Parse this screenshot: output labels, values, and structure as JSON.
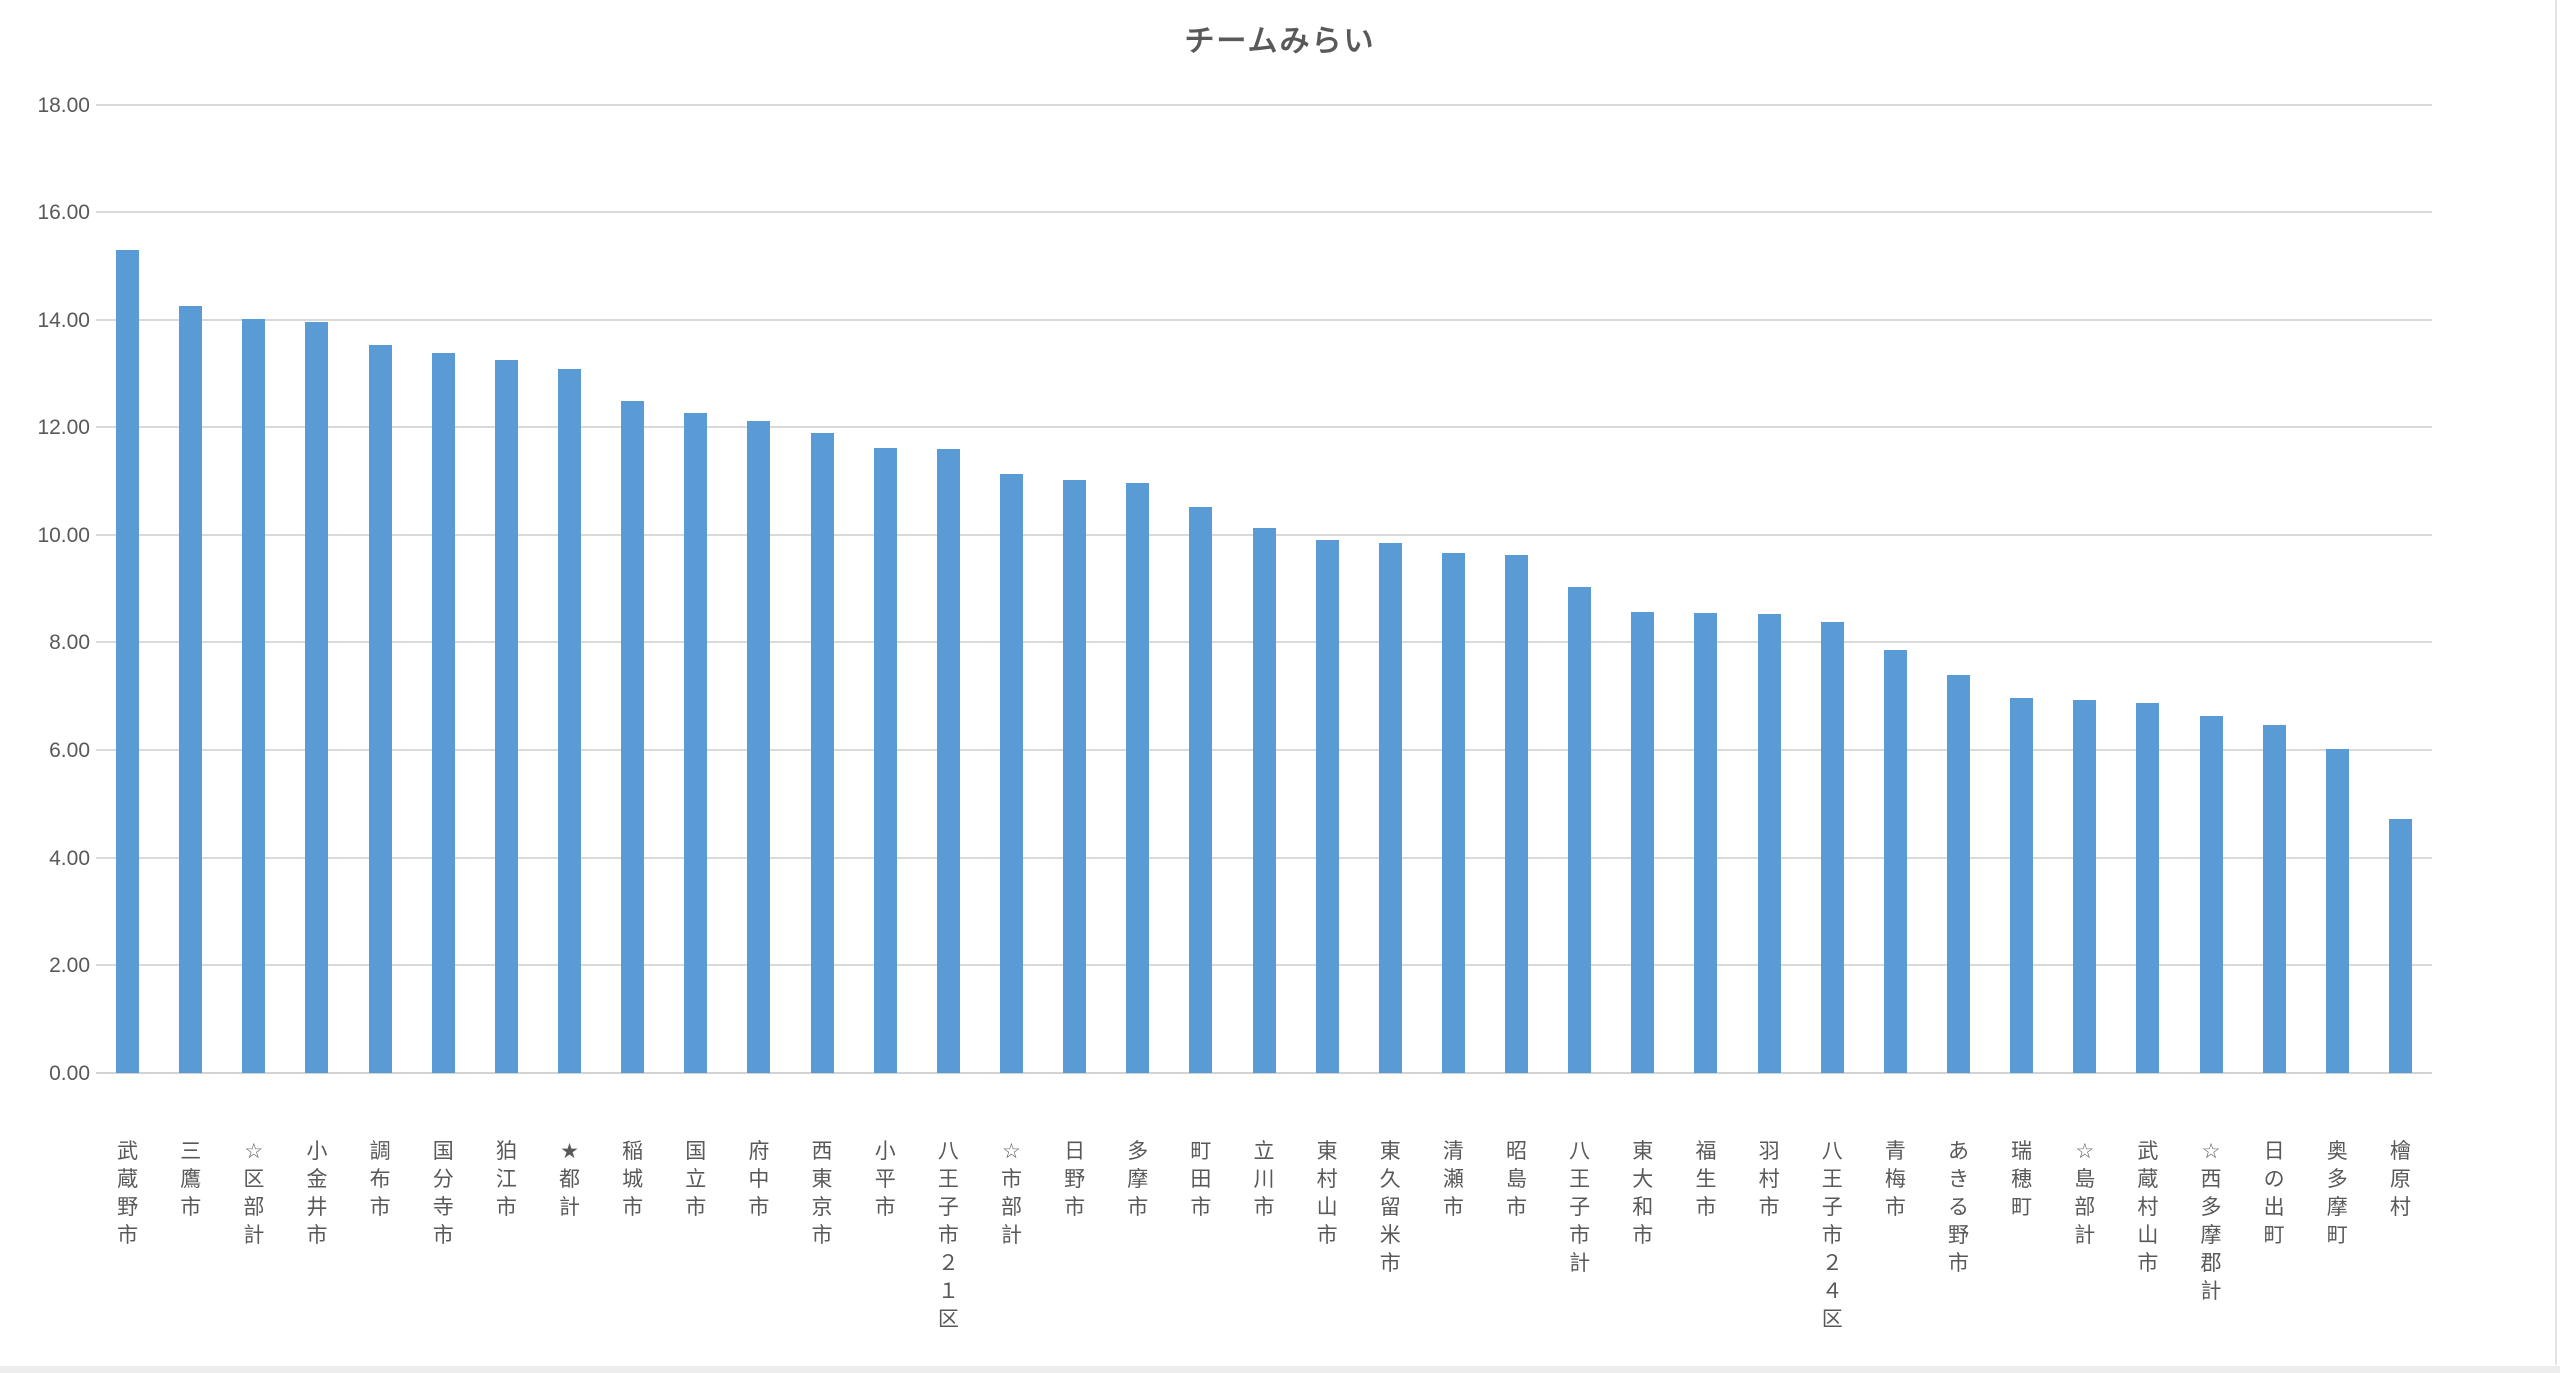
{
  "chart_data": {
    "type": "bar",
    "title": "チームみらい",
    "categories": [
      "武蔵野市",
      "三鷹市",
      "☆区部計",
      "小金井市",
      "調布市",
      "国分寺市",
      "狛江市",
      "★都計",
      "稲城市",
      "国立市",
      "府中市",
      "西東京市",
      "小平市",
      "八王子市２１区",
      "☆市部計",
      "日野市",
      "多摩市",
      "町田市",
      "立川市",
      "東村山市",
      "東久留米市",
      "清瀬市",
      "昭島市",
      "八王子市計",
      "東大和市",
      "福生市",
      "羽村市",
      "八王子市２４区",
      "青梅市",
      "あきる野市",
      "瑞穂町",
      "☆島部計",
      "武蔵村山市",
      "☆西多摩郡計",
      "日の出町",
      "奥多摩町",
      "檜原村"
    ],
    "values": [
      15.29,
      14.26,
      14.01,
      13.96,
      13.53,
      13.38,
      13.25,
      13.08,
      12.49,
      12.26,
      12.11,
      11.9,
      11.62,
      11.6,
      11.13,
      11.01,
      10.96,
      10.51,
      10.12,
      9.9,
      9.84,
      9.66,
      9.62,
      9.03,
      8.57,
      8.55,
      8.53,
      8.38,
      7.86,
      7.39,
      6.96,
      6.93,
      6.87,
      6.63,
      6.47,
      6.01,
      4.71
    ],
    "xlabel": "",
    "ylabel": "",
    "ylim": [
      0,
      18
    ],
    "ytick_step": 2,
    "ytick_labels": [
      "0.00",
      "2.00",
      "4.00",
      "6.00",
      "8.00",
      "10.00",
      "12.00",
      "14.00",
      "16.00",
      "18.00"
    ],
    "grid": true,
    "legend_position": "none",
    "bar_color": "#5B9BD5",
    "gridline_color": "#D9D9D9",
    "axis_line_color": "#D2D2D2",
    "text_color": "#595959",
    "background_color": "#FFFFFF"
  }
}
